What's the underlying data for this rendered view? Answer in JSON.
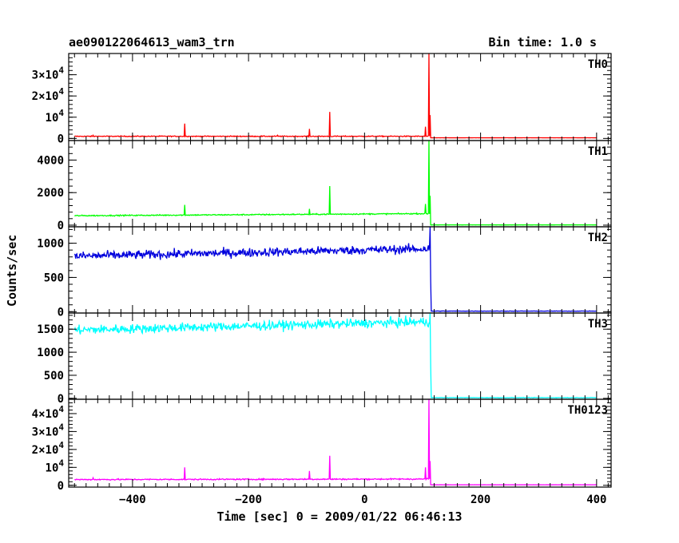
{
  "header": {
    "title": "ae090122064613_wam3_trn",
    "bin_time": "Bin time: 1.0 s"
  },
  "chart_data": {
    "type": "line",
    "xlabel": "Time [sec] 0 = 2009/01/22 06:46:13",
    "ylabel": "Counts/sec",
    "xlim": [
      -510,
      425
    ],
    "x_ticks": [
      -400,
      -200,
      0,
      200,
      400
    ],
    "bin_time_s": 1.0,
    "drop_time": 113,
    "panels": [
      {
        "name": "TH0",
        "color": "#ff0000",
        "ylim": [
          -1000,
          40000
        ],
        "y_ticks": [
          {
            "v": 0,
            "label": "0"
          },
          {
            "v": 10000,
            "label": "10^4"
          },
          {
            "v": 20000,
            "label": "2×10^4"
          },
          {
            "v": 30000,
            "label": "3×10^4"
          }
        ],
        "baseline_start": 1000,
        "baseline_end": 1000,
        "noise": 150,
        "post_level": 300,
        "spikes": [
          [
            -468,
            1500
          ],
          [
            -310,
            7000
          ],
          [
            -150,
            1500
          ],
          [
            -95,
            4500
          ],
          [
            -60,
            12500
          ],
          [
            105,
            5500
          ],
          [
            111,
            40000
          ],
          [
            113,
            11000
          ]
        ]
      },
      {
        "name": "TH1",
        "color": "#00ff00",
        "ylim": [
          -100,
          5200
        ],
        "y_ticks": [
          {
            "v": 0,
            "label": "0"
          },
          {
            "v": 2000,
            "label": "2000"
          },
          {
            "v": 4000,
            "label": "4000"
          }
        ],
        "baseline_start": 580,
        "baseline_end": 710,
        "noise": 25,
        "post_level": 15,
        "spikes": [
          [
            -310,
            1250
          ],
          [
            -95,
            1000
          ],
          [
            -60,
            2400
          ],
          [
            105,
            1300
          ],
          [
            111,
            5200
          ],
          [
            113,
            1800
          ]
        ]
      },
      {
        "name": "TH2",
        "color": "#0000dd",
        "ylim": [
          -20,
          1240
        ],
        "y_ticks": [
          {
            "v": 0,
            "label": "0"
          },
          {
            "v": 500,
            "label": "500"
          },
          {
            "v": 1000,
            "label": "1000"
          }
        ],
        "baseline_start": 810,
        "baseline_end": 920,
        "noise": 45,
        "post_level": 8,
        "spikes": [
          [
            113,
            1240
          ],
          [
            114,
            450
          ]
        ]
      },
      {
        "name": "TH3",
        "color": "#00ffff",
        "ylim": [
          -20,
          1850
        ],
        "y_ticks": [
          {
            "v": 0,
            "label": "0"
          },
          {
            "v": 500,
            "label": "500"
          },
          {
            "v": 1000,
            "label": "1000"
          },
          {
            "v": 1500,
            "label": "1500"
          }
        ],
        "baseline_start": 1480,
        "baseline_end": 1660,
        "noise": 70,
        "post_level": 15,
        "spikes": [
          [
            113,
            1850
          ],
          [
            114,
            700
          ]
        ]
      },
      {
        "name": "TH0123",
        "color": "#ff00ff",
        "ylim": [
          -1000,
          48000
        ],
        "y_ticks": [
          {
            "v": 0,
            "label": "0"
          },
          {
            "v": 10000,
            "label": "10^4"
          },
          {
            "v": 20000,
            "label": "2×10^4"
          },
          {
            "v": 30000,
            "label": "3×10^4"
          },
          {
            "v": 40000,
            "label": "4×10^4"
          }
        ],
        "baseline_start": 3200,
        "baseline_end": 3500,
        "noise": 250,
        "post_level": 300,
        "spikes": [
          [
            -468,
            4200
          ],
          [
            -310,
            10000
          ],
          [
            -95,
            8000
          ],
          [
            -60,
            16500
          ],
          [
            105,
            10000
          ],
          [
            111,
            48000
          ],
          [
            113,
            13500
          ]
        ]
      }
    ]
  }
}
